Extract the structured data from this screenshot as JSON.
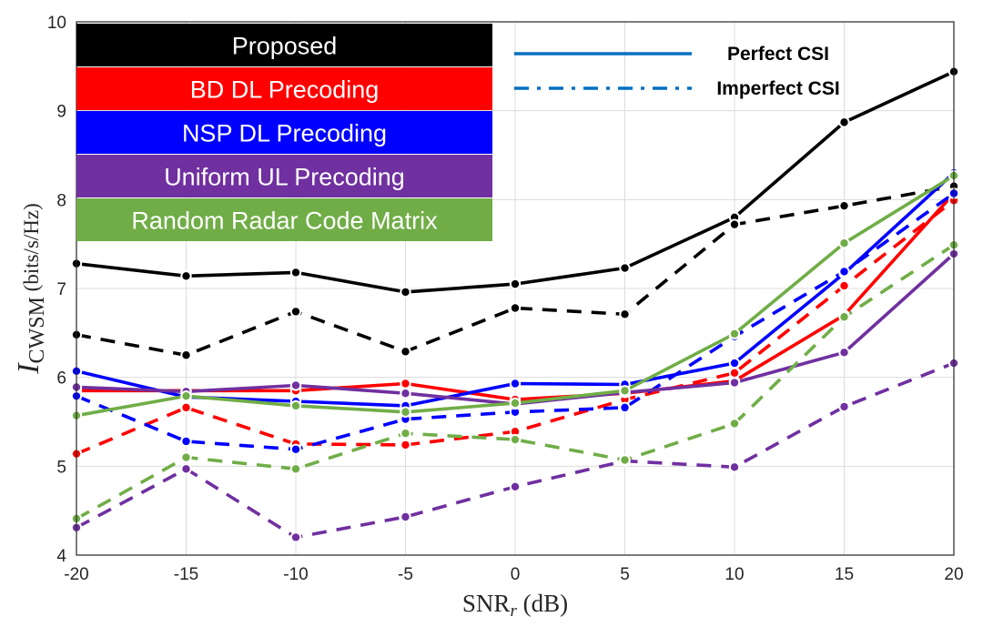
{
  "chart_data": {
    "type": "line",
    "title": "",
    "xlabel": "SNR",
    "xlabel_sub": "r",
    "xlabel_unit": " (dB)",
    "ylabel": "I",
    "ylabel_sub": "CWSM",
    "ylabel_unit": " (bits/s/Hz)",
    "x": [
      -20,
      -15,
      -10,
      -5,
      0,
      5,
      10,
      15,
      20
    ],
    "x_tick_labels": [
      "-20",
      "-15",
      "-10",
      "-5",
      "0",
      "5",
      "10",
      "15",
      "20"
    ],
    "xlim": [
      -20,
      20
    ],
    "ylim": [
      4,
      10
    ],
    "y_ticks": [
      4,
      5,
      6,
      7,
      8,
      9,
      10
    ],
    "y_tick_labels": [
      "4",
      "5",
      "6",
      "7",
      "8",
      "9",
      "10"
    ],
    "grid": true,
    "series": [
      {
        "name": "Proposed",
        "csi": "Perfect CSI",
        "color": "#000000",
        "style": "solid",
        "values": [
          7.28,
          7.14,
          7.18,
          6.96,
          7.05,
          7.23,
          7.8,
          8.87,
          9.44
        ]
      },
      {
        "name": "Proposed",
        "csi": "Imperfect CSI",
        "color": "#000000",
        "style": "dashed",
        "values": [
          6.48,
          6.25,
          6.74,
          6.29,
          6.78,
          6.71,
          7.72,
          7.93,
          8.15
        ]
      },
      {
        "name": "BD DL Precoding",
        "csi": "Perfect CSI",
        "color": "#ff0000",
        "style": "solid",
        "values": [
          5.85,
          5.85,
          5.85,
          5.93,
          5.75,
          5.82,
          5.96,
          6.7,
          8.07
        ]
      },
      {
        "name": "BD DL Precoding",
        "csi": "Imperfect CSI",
        "color": "#ff0000",
        "style": "dashed",
        "values": [
          5.14,
          5.66,
          5.25,
          5.24,
          5.39,
          5.75,
          6.05,
          7.03,
          7.99
        ]
      },
      {
        "name": "NSP DL Precoding",
        "csi": "Perfect CSI",
        "color": "#0000ff",
        "style": "solid",
        "values": [
          6.07,
          5.78,
          5.73,
          5.68,
          5.93,
          5.92,
          6.16,
          7.17,
          8.3
        ]
      },
      {
        "name": "NSP DL Precoding",
        "csi": "Imperfect CSI",
        "color": "#0000ff",
        "style": "dashed",
        "values": [
          5.79,
          5.28,
          5.19,
          5.53,
          5.61,
          5.66,
          6.46,
          7.19,
          8.07
        ]
      },
      {
        "name": "Uniform UL Precoding",
        "csi": "Perfect CSI",
        "color": "#7030a0",
        "style": "solid",
        "values": [
          5.89,
          5.84,
          5.91,
          5.82,
          5.7,
          5.83,
          5.94,
          6.28,
          7.39
        ]
      },
      {
        "name": "Uniform UL Precoding",
        "csi": "Imperfect CSI",
        "color": "#7030a0",
        "style": "dashed",
        "values": [
          4.31,
          4.97,
          4.2,
          4.43,
          4.77,
          5.06,
          4.99,
          5.67,
          6.16
        ]
      },
      {
        "name": "Random Radar Code Matrix",
        "csi": "Perfect CSI",
        "color": "#70ad47",
        "style": "solid",
        "values": [
          5.57,
          5.79,
          5.68,
          5.61,
          5.71,
          5.85,
          6.49,
          7.51,
          8.27
        ]
      },
      {
        "name": "Random Radar Code Matrix",
        "csi": "Imperfect CSI",
        "color": "#70ad47",
        "style": "dashed",
        "values": [
          4.41,
          5.1,
          4.97,
          5.37,
          5.3,
          5.07,
          5.48,
          6.68,
          7.49
        ]
      }
    ],
    "legend": {
      "placement": "top-left",
      "entries": [
        {
          "label": "Proposed",
          "color": "#000000"
        },
        {
          "label": "BD DL Precoding",
          "color": "#ff0000"
        },
        {
          "label": "NSP DL Precoding",
          "color": "#0000ff"
        },
        {
          "label": "Uniform UL Precoding",
          "color": "#7030a0"
        },
        {
          "label": "Random Radar Code Matrix",
          "color": "#70ad47"
        }
      ],
      "style_entries": [
        {
          "label": "Perfect CSI",
          "style": "solid",
          "color": "#0070c0"
        },
        {
          "label": "Imperfect CSI",
          "style": "dashdot",
          "color": "#0070c0"
        }
      ]
    }
  }
}
